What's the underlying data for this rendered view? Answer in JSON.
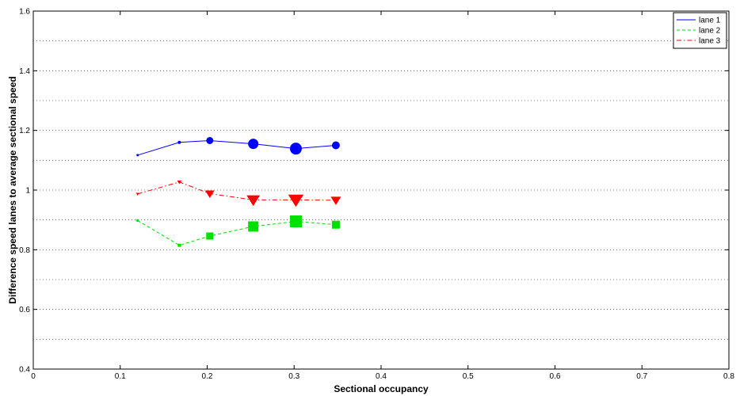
{
  "chart_data": {
    "type": "line",
    "title": "",
    "xlabel": "Sectional occupancy",
    "ylabel": "Difference speed lanes to average sectional speed",
    "xlim": [
      0,
      0.8
    ],
    "ylim": [
      0.4,
      1.6
    ],
    "x_ticks": [
      0,
      0.1,
      0.2,
      0.3,
      0.4,
      0.5,
      0.6,
      0.7,
      0.8
    ],
    "x_tick_labels": [
      "0",
      "0.1",
      "0.2",
      "0.3",
      "0.4",
      "0.5",
      "0.6",
      "0.7",
      "0.8"
    ],
    "y_ticks": [
      0.4,
      0.6,
      0.8,
      1.0,
      1.2,
      1.4,
      1.6
    ],
    "y_tick_labels": [
      "0.4",
      "0.6",
      "0.8",
      "1",
      "1.2",
      "1.4",
      "1.6"
    ],
    "y_grid": [
      0.5,
      0.6,
      0.7,
      0.8,
      0.9,
      1.0,
      1.1,
      1.2,
      1.3,
      1.4,
      1.5
    ],
    "grid": "horizontal dotted",
    "legend_position": "top-right",
    "series": [
      {
        "name": "lane 1",
        "color": "#0000ff",
        "line_style": "solid",
        "marker": "circle",
        "x": [
          0.12,
          0.168,
          0.203,
          0.253,
          0.302,
          0.348
        ],
        "y": [
          1.117,
          1.16,
          1.166,
          1.155,
          1.139,
          1.15
        ],
        "marker_weight": [
          1,
          1.5,
          4,
          6,
          7,
          4.5
        ]
      },
      {
        "name": "lane 2",
        "color": "#00e000",
        "line_style": "dashed",
        "marker": "square",
        "x": [
          0.12,
          0.168,
          0.203,
          0.253,
          0.302,
          0.348
        ],
        "y": [
          0.898,
          0.815,
          0.846,
          0.878,
          0.895,
          0.884
        ],
        "marker_weight": [
          1,
          1.5,
          4,
          6,
          7,
          4.5
        ]
      },
      {
        "name": "lane 3",
        "color": "#ff0000",
        "line_style": "dashdot",
        "marker": "triangle-down",
        "x": [
          0.12,
          0.168,
          0.203,
          0.253,
          0.302,
          0.348
        ],
        "y": [
          0.987,
          1.027,
          0.988,
          0.967,
          0.967,
          0.966
        ],
        "marker_weight": [
          1,
          1.5,
          4,
          6,
          7,
          4.5
        ]
      }
    ]
  }
}
